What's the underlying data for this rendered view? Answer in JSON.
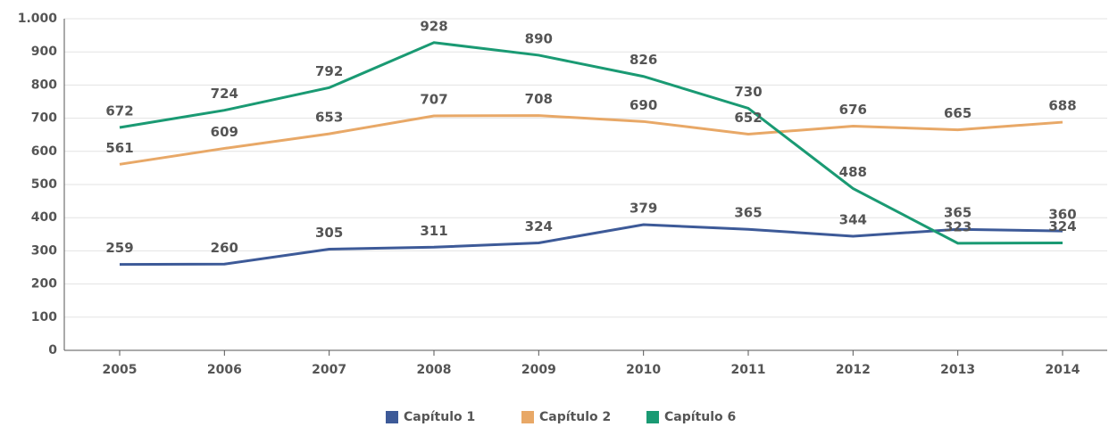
{
  "chart_data": {
    "type": "line",
    "categories": [
      "2005",
      "2006",
      "2007",
      "2008",
      "2009",
      "2010",
      "2011",
      "2012",
      "2013",
      "2014"
    ],
    "series": [
      {
        "name": "Capítulo 1",
        "color": "#3d5a98",
        "values": [
          259,
          260,
          305,
          311,
          324,
          379,
          365,
          344,
          365,
          360
        ]
      },
      {
        "name": "Capítulo 2",
        "color": "#e8a867",
        "values": [
          561,
          609,
          653,
          707,
          708,
          690,
          652,
          676,
          665,
          688
        ]
      },
      {
        "name": "Capítulo 6",
        "color": "#1a9a73",
        "values": [
          672,
          724,
          792,
          928,
          890,
          826,
          730,
          488,
          323,
          324
        ]
      }
    ],
    "ylim": [
      0,
      1000
    ],
    "yticks": [
      0,
      100,
      200,
      300,
      400,
      500,
      600,
      700,
      800,
      900,
      {
        "value": 1000,
        "label": "1.000"
      }
    ],
    "grid": true,
    "legend": "bottom"
  }
}
